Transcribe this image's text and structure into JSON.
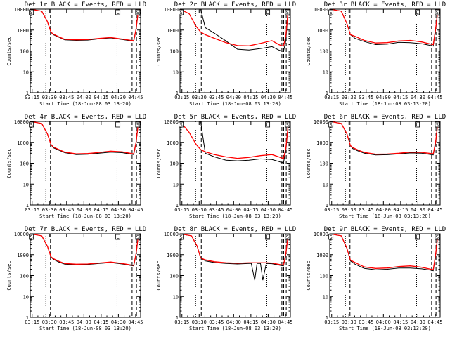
{
  "figure": {
    "colors": {
      "background": "#ffffff",
      "axes": "#000000",
      "events": "#000000",
      "lld": "#ff0000"
    },
    "title_suffix": " BLACK = Events, RED = LLD",
    "ylabel": "Counts/sec",
    "xlabel": "Start Time (18-Jun-08 03:13:20)",
    "x_tick_labels": [
      "03:15",
      "03:30",
      "03:45",
      "04:00",
      "04:15",
      "04:30",
      "04:45"
    ],
    "y_tick_labels": [
      "1",
      "10",
      "100",
      "1000",
      "10000"
    ],
    "box_markers": [
      "S",
      "L",
      "S"
    ],
    "box_marker_times_min": [
      1.0,
      76.2,
      93.5
    ]
  },
  "chart_data": [
    {
      "type": "line",
      "title": "Det 1r BLACK = Events, RED = LLD",
      "xlim_min": [
        0,
        96
      ],
      "ylim": [
        1,
        10000
      ],
      "x": [
        0,
        10,
        15,
        18,
        20,
        25,
        30,
        40,
        50,
        60,
        70,
        80,
        88,
        90,
        92,
        94,
        96
      ],
      "series": [
        {
          "name": "Events",
          "values": [
            10000,
            8000,
            2500,
            800,
            600,
            450,
            340,
            320,
            330,
            380,
            420,
            350,
            300,
            290,
            1000,
            8000,
            10000
          ]
        },
        {
          "name": "LLD",
          "values": [
            10000,
            8000,
            2500,
            800,
            640,
            470,
            360,
            340,
            350,
            400,
            440,
            370,
            320,
            310,
            1100,
            8500,
            10000
          ]
        }
      ],
      "vlines_dotted_min": [
        13.6,
        75.5
      ],
      "vlines_dashed_min": [
        17.6,
        88.6,
        92.4
      ]
    },
    {
      "type": "line",
      "title": "Det 2r BLACK = Events, RED = LLD",
      "xlim_min": [
        0,
        96
      ],
      "ylim": [
        1,
        10000
      ],
      "x": [
        0,
        8,
        14,
        18,
        22,
        30,
        40,
        50,
        60,
        70,
        80,
        86,
        88,
        90,
        92,
        94,
        96
      ],
      "series": [
        {
          "name": "Events",
          "values": [
            10000,
            10000,
            10000,
            10000,
            1300,
            700,
            300,
            120,
            110,
            130,
            160,
            110,
            100,
            95,
            300,
            8000,
            10000
          ]
        },
        {
          "name": "LLD",
          "values": [
            10000,
            6000,
            1500,
            800,
            600,
            400,
            250,
            180,
            175,
            230,
            310,
            200,
            180,
            170,
            500,
            8500,
            10000
          ]
        }
      ],
      "vlines_dotted_min": [
        13.6,
        75.5
      ],
      "vlines_dashed_min": [
        18.5,
        88.6,
        90.2,
        92.4
      ]
    },
    {
      "type": "line",
      "title": "Det 3r BLACK = Events, RED = LLD",
      "xlim_min": [
        0,
        96
      ],
      "ylim": [
        1,
        10000
      ],
      "x": [
        0,
        10,
        15,
        18,
        22,
        30,
        40,
        50,
        60,
        70,
        80,
        88,
        90,
        92,
        94,
        96
      ],
      "series": [
        {
          "name": "Events",
          "values": [
            10000,
            8000,
            2000,
            600,
            400,
            280,
            200,
            210,
            260,
            250,
            220,
            180,
            170,
            1000,
            8000,
            10000
          ]
        },
        {
          "name": "LLD",
          "values": [
            10000,
            8000,
            2000,
            600,
            500,
            320,
            240,
            250,
            300,
            320,
            270,
            210,
            200,
            1100,
            8500,
            10000
          ]
        }
      ],
      "vlines_dotted_min": [
        13.6,
        75.5
      ],
      "vlines_dashed_min": [
        17.6,
        88.6,
        92.4
      ]
    },
    {
      "type": "line",
      "title": "Det 4r BLACK = Events, RED = LLD",
      "xlim_min": [
        0,
        96
      ],
      "ylim": [
        1,
        10000
      ],
      "x": [
        0,
        10,
        15,
        18,
        20,
        25,
        30,
        40,
        50,
        60,
        70,
        80,
        88,
        90,
        92,
        94,
        96
      ],
      "series": [
        {
          "name": "Events",
          "values": [
            10000,
            8000,
            2500,
            800,
            550,
            420,
            320,
            260,
            270,
            300,
            340,
            320,
            270,
            260,
            900,
            8000,
            10000
          ]
        },
        {
          "name": "LLD",
          "values": [
            10000,
            8000,
            2500,
            800,
            600,
            450,
            340,
            280,
            290,
            330,
            380,
            350,
            290,
            280,
            1000,
            8500,
            10000
          ]
        }
      ],
      "vlines_dotted_min": [
        13.6,
        75.5
      ],
      "vlines_dashed_min": [
        17.6,
        88.6,
        90.2,
        92.4
      ]
    },
    {
      "type": "line",
      "title": "Det 5r BLACK = Events, RED = LLD",
      "xlim_min": [
        0,
        96
      ],
      "ylim": [
        1,
        10000
      ],
      "x": [
        0,
        8,
        14,
        18,
        22,
        30,
        40,
        50,
        60,
        70,
        80,
        86,
        88,
        90,
        92,
        94,
        96
      ],
      "series": [
        {
          "name": "Events",
          "values": [
            10000,
            10000,
            10000,
            10000,
            300,
            200,
            140,
            130,
            140,
            160,
            150,
            120,
            110,
            105,
            400,
            5000,
            10000
          ]
        },
        {
          "name": "LLD",
          "values": [
            10000,
            3000,
            800,
            450,
            350,
            260,
            200,
            170,
            190,
            230,
            260,
            200,
            180,
            170,
            500,
            6000,
            10000
          ]
        }
      ],
      "vlines_dotted_min": [
        13.6,
        75.5
      ],
      "vlines_dashed_min": [
        18.5,
        88.6,
        90.2,
        92.4
      ]
    },
    {
      "type": "line",
      "title": "Det 6r BLACK = Events, RED = LLD",
      "xlim_min": [
        0,
        96
      ],
      "ylim": [
        1,
        10000
      ],
      "x": [
        0,
        10,
        15,
        18,
        20,
        25,
        30,
        40,
        50,
        60,
        70,
        80,
        88,
        90,
        92,
        94,
        96
      ],
      "series": [
        {
          "name": "Events",
          "values": [
            10000,
            8000,
            2500,
            700,
            500,
            380,
            300,
            250,
            255,
            280,
            310,
            300,
            260,
            250,
            900,
            8000,
            10000
          ]
        },
        {
          "name": "LLD",
          "values": [
            10000,
            8000,
            2500,
            700,
            560,
            420,
            330,
            270,
            275,
            300,
            340,
            330,
            290,
            280,
            1000,
            8500,
            10000
          ]
        }
      ],
      "vlines_dotted_min": [
        13.6,
        75.5
      ],
      "vlines_dashed_min": [
        17.6,
        88.6,
        92.4
      ]
    },
    {
      "type": "line",
      "title": "Det 7r BLACK = Events, RED = LLD",
      "xlim_min": [
        0,
        96
      ],
      "ylim": [
        1,
        10000
      ],
      "x": [
        0,
        10,
        15,
        18,
        20,
        25,
        30,
        40,
        50,
        60,
        70,
        80,
        88,
        90,
        92,
        94,
        96
      ],
      "series": [
        {
          "name": "Events",
          "values": [
            10000,
            8000,
            2500,
            800,
            600,
            440,
            350,
            330,
            340,
            380,
            420,
            360,
            300,
            290,
            1000,
            8000,
            10000
          ]
        },
        {
          "name": "LLD",
          "values": [
            10000,
            8000,
            2500,
            800,
            650,
            480,
            380,
            350,
            360,
            400,
            450,
            380,
            320,
            310,
            1100,
            8500,
            10000
          ]
        }
      ],
      "vlines_dotted_min": [
        13.6,
        75.5
      ],
      "vlines_dashed_min": [
        17.6,
        88.6,
        92.4
      ]
    },
    {
      "type": "line",
      "title": "Det 8r BLACK = Events, RED = LLD",
      "xlim_min": [
        0,
        96
      ],
      "ylim": [
        1,
        10000
      ],
      "x": [
        0,
        10,
        15,
        18,
        22,
        30,
        40,
        50,
        60,
        62,
        65,
        67,
        70,
        72,
        75,
        80,
        88,
        90,
        92,
        94,
        96
      ],
      "series": [
        {
          "name": "Events",
          "values": [
            10000,
            8000,
            2500,
            700,
            500,
            420,
            380,
            360,
            380,
            380,
            60,
            380,
            380,
            60,
            380,
            370,
            300,
            290,
            1000,
            8000,
            10000
          ]
        },
        {
          "name": "LLD",
          "values": [
            10000,
            8000,
            2500,
            700,
            560,
            460,
            410,
            390,
            410,
            410,
            410,
            410,
            410,
            410,
            410,
            400,
            330,
            320,
            1100,
            8500,
            10000
          ]
        }
      ],
      "vlines_dotted_min": [
        13.6,
        75.5
      ],
      "vlines_dashed_min": [
        18.5,
        88.6,
        90.2,
        92.4
      ]
    },
    {
      "type": "line",
      "title": "Det 9r BLACK = Events, RED = LLD",
      "xlim_min": [
        0,
        96
      ],
      "ylim": [
        1,
        10000
      ],
      "x": [
        0,
        10,
        15,
        18,
        22,
        30,
        40,
        50,
        60,
        70,
        80,
        88,
        90,
        92,
        94,
        96
      ],
      "series": [
        {
          "name": "Events",
          "values": [
            10000,
            8000,
            2000,
            500,
            350,
            220,
            190,
            200,
            230,
            230,
            210,
            180,
            170,
            900,
            8000,
            10000
          ]
        },
        {
          "name": "LLD",
          "values": [
            10000,
            8000,
            2000,
            550,
            420,
            260,
            220,
            230,
            270,
            290,
            250,
            200,
            190,
            1000,
            8500,
            10000
          ]
        }
      ],
      "vlines_dotted_min": [
        13.6,
        75.5
      ],
      "vlines_dashed_min": [
        17.6,
        88.6,
        92.4
      ]
    }
  ]
}
